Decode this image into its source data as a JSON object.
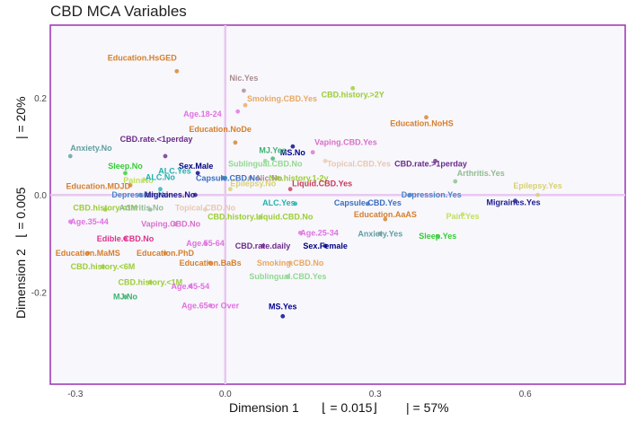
{
  "chart_data": {
    "type": "scatter",
    "title": "CBD MCA Variables",
    "xlabel": {
      "prefix": "Dimension 1",
      "eig": "⌊ = 0.015⌋",
      "pct": "| = 57%"
    },
    "ylabel": {
      "prefix": "Dimension 2",
      "eig": "⌊ = 0.005",
      "pct": "| = 20%"
    },
    "xlim": [
      -0.35,
      0.8
    ],
    "ylim": [
      -0.39,
      0.35
    ],
    "xticks": [
      -0.3,
      0.0,
      0.3,
      0.6
    ],
    "xtick_labels": [
      "-0.3",
      "0.0",
      "0.3",
      "0.6"
    ],
    "yticks": [
      0.2,
      0.0,
      -0.2
    ],
    "ytick_labels": [
      "0.2",
      "0.0",
      "-0.2"
    ],
    "colors": {
      "panel_border": "#9b30b4",
      "panel_bg": "#f8f7fc",
      "zero_line": "#e8c8f0",
      "education": "#d47f2c",
      "cbd_history": "#9acd32",
      "anxiety": "#5f9ea0",
      "sleep": "#32cd32",
      "pain": "#c0e05a",
      "alc": "#20b2aa",
      "mj": "#3cb371",
      "depression": "#4a86c8",
      "migraines": "#1a1a8c",
      "ms": "#00008b",
      "rate": "#6a2a8a",
      "sex": "#000080",
      "capsule": "#3a6ec0",
      "edible": "#e0308a",
      "liquid": "#c8385a",
      "topical": "#e8c8b0",
      "vaping": "#d870c8",
      "smoking": "#e8a860",
      "age": "#e070e0",
      "sublingual": "#90d890",
      "nic": "#a88c8c",
      "epilepsy": "#d8d070",
      "arthritis": "#8fbc8f"
    },
    "points": [
      {
        "label": "Education.HsGED",
        "x": -0.097,
        "y": 0.255,
        "color": "#d47f2c",
        "anchor": "end",
        "dx": 0,
        "dy": -12
      },
      {
        "label": "Nic.Yes",
        "x": 0.037,
        "y": 0.215,
        "color": "#a88c8c",
        "anchor": "middle",
        "dx": 0,
        "dy": -11
      },
      {
        "label": "CBD.history.>2Y",
        "x": 0.255,
        "y": 0.22,
        "color": "#9acd32",
        "anchor": "middle",
        "dx": 0,
        "dy": 10
      },
      {
        "label": "Smoking.CBD.Yes",
        "x": 0.04,
        "y": 0.185,
        "color": "#e8a860",
        "anchor": "start",
        "dx": 2,
        "dy": -4
      },
      {
        "label": "Age.18-24",
        "x": 0.025,
        "y": 0.172,
        "color": "#e070e0",
        "anchor": "end",
        "dx": -18,
        "dy": 6
      },
      {
        "label": "Education.NoHS",
        "x": 0.402,
        "y": 0.16,
        "color": "#d47f2c",
        "anchor": "middle",
        "dx": -5,
        "dy": 10
      },
      {
        "label": "Education.NoDe",
        "x": 0.02,
        "y": 0.108,
        "color": "#d47f2c",
        "anchor": "end",
        "dx": 18,
        "dy": -12
      },
      {
        "label": "MS.No",
        "x": 0.135,
        "y": 0.1,
        "color": "#00008b",
        "anchor": "middle",
        "dx": 0,
        "dy": 10
      },
      {
        "label": "Vaping.CBD.Yes",
        "x": 0.175,
        "y": 0.088,
        "color": "#d870c8",
        "anchor": "start",
        "dx": 2,
        "dy": -8
      },
      {
        "label": "CBD.rate.<1perday",
        "x": -0.12,
        "y": 0.08,
        "color": "#6a2a8a",
        "anchor": "middle",
        "dx": -10,
        "dy": -16
      },
      {
        "label": "Anxiety.No",
        "x": -0.31,
        "y": 0.08,
        "color": "#5f9ea0",
        "anchor": "start",
        "dx": 0,
        "dy": -6
      },
      {
        "label": "MJ.Yes",
        "x": 0.095,
        "y": 0.075,
        "color": "#3cb371",
        "anchor": "middle",
        "dx": 0,
        "dy": -6
      },
      {
        "label": "Sublingual.CBD.No",
        "x": 0.08,
        "y": 0.07,
        "color": "#90d890",
        "anchor": "middle",
        "dx": 0,
        "dy": 6
      },
      {
        "label": "Topical.CBD.Yes",
        "x": 0.2,
        "y": 0.07,
        "color": "#e8c8b0",
        "anchor": "start",
        "dx": 2,
        "dy": 6
      },
      {
        "label": "CBD.rate.>1perday",
        "x": 0.42,
        "y": 0.07,
        "color": "#6a2a8a",
        "anchor": "middle",
        "dx": -5,
        "dy": 6
      },
      {
        "label": "Sex.Male",
        "x": -0.055,
        "y": 0.045,
        "color": "#000080",
        "anchor": "middle",
        "dx": -2,
        "dy": -5
      },
      {
        "label": "Sleep.No",
        "x": -0.2,
        "y": 0.045,
        "color": "#32cd32",
        "anchor": "middle",
        "dx": 0,
        "dy": -5
      },
      {
        "label": "ALC.Yes",
        "x": 0.0,
        "y": 0.035,
        "color": "#20b2aa",
        "anchor": "end",
        "dx": -38,
        "dy": -5
      },
      {
        "label": "Arthritis.Yes",
        "x": 0.46,
        "y": 0.028,
        "color": "#8fbc8f",
        "anchor": "start",
        "dx": 2,
        "dy": -6
      },
      {
        "label": "Capsule.CBD.No",
        "x": -0.005,
        "y": 0.035,
        "color": "#3a6ec0",
        "anchor": "start",
        "dx": -30,
        "dy": 3
      },
      {
        "label": "Nic.No",
        "x": 0.05,
        "y": 0.035,
        "color": "#a88c8c",
        "anchor": "start",
        "dx": 7,
        "dy": 3
      },
      {
        "label": "Nic.history.1-2y",
        "x": 0.105,
        "y": 0.035,
        "color": "#9acd32",
        "anchor": "start",
        "dx": -10,
        "dy": 3
      },
      {
        "label": "Pain.No",
        "x": -0.165,
        "y": 0.03,
        "color": "#c0e05a",
        "anchor": "middle",
        "dx": -5,
        "dy": 3
      },
      {
        "label": "Education.MDJD",
        "x": -0.19,
        "y": 0.02,
        "color": "#d47f2c",
        "anchor": "end",
        "dx": 0,
        "dy": 4
      },
      {
        "label": "ALC.No",
        "x": -0.13,
        "y": 0.012,
        "color": "#20b2aa",
        "anchor": "middle",
        "dx": 0,
        "dy": -10
      },
      {
        "label": "Epilepsy.No",
        "x": 0.01,
        "y": 0.012,
        "color": "#d8d070",
        "anchor": "start",
        "dx": 0,
        "dy": -3
      },
      {
        "label": "Liquid.CBD.Yes",
        "x": 0.13,
        "y": 0.012,
        "color": "#c8385a",
        "anchor": "start",
        "dx": 2,
        "dy": -3
      },
      {
        "label": "Epilepsy.Yes",
        "x": 0.625,
        "y": 0.0,
        "color": "#d8d070",
        "anchor": "middle",
        "dx": 0,
        "dy": -7
      },
      {
        "label": "Depression.No",
        "x": -0.17,
        "y": 0.0,
        "color": "#4a86c8",
        "anchor": "middle",
        "dx": 0,
        "dy": 3
      },
      {
        "label": "Migraines.No",
        "x": -0.06,
        "y": 0.0,
        "color": "#1a1a8c",
        "anchor": "end",
        "dx": 0,
        "dy": 3
      },
      {
        "label": "Depression.Yes",
        "x": 0.37,
        "y": 0.0,
        "color": "#4a86c8",
        "anchor": "start",
        "dx": -10,
        "dy": 3
      },
      {
        "label": "Migraines.Yes",
        "x": 0.58,
        "y": -0.012,
        "color": "#1a1a8c",
        "anchor": "middle",
        "dx": -2,
        "dy": 5
      },
      {
        "label": "CBD.history.<3M",
        "x": -0.24,
        "y": -0.03,
        "color": "#9acd32",
        "anchor": "middle",
        "dx": 0,
        "dy": 1
      },
      {
        "label": "Arthritis.No",
        "x": -0.15,
        "y": -0.03,
        "color": "#8fbc8f",
        "anchor": "middle",
        "dx": -10,
        "dy": 1
      },
      {
        "label": "Topical.CBD.No",
        "x": -0.04,
        "y": -0.03,
        "color": "#e8c8b0",
        "anchor": "middle",
        "dx": 0,
        "dy": 1
      },
      {
        "label": "ALC.Yes",
        "x": 0.14,
        "y": -0.018,
        "color": "#20b2aa",
        "anchor": "end",
        "dx": 0,
        "dy": 2
      },
      {
        "label": "Capsule.CBD.Yes",
        "x": 0.285,
        "y": -0.018,
        "color": "#3a6ec0",
        "anchor": "middle",
        "dx": 0,
        "dy": 2
      },
      {
        "label": "Pain.Yes",
        "x": 0.475,
        "y": -0.04,
        "color": "#c0e05a",
        "anchor": "middle",
        "dx": 0,
        "dy": 5
      },
      {
        "label": "Age.35-44",
        "x": -0.31,
        "y": -0.055,
        "color": "#e070e0",
        "anchor": "start",
        "dx": 0,
        "dy": 3
      },
      {
        "label": "Vaping.CBD.No",
        "x": -0.1,
        "y": -0.06,
        "color": "#d870c8",
        "anchor": "middle",
        "dx": -5,
        "dy": 3
      },
      {
        "label": "CBD.history.Liquid.CBD.No",
        "x": 0.07,
        "y": -0.045,
        "color": "#9acd32",
        "anchor": "middle",
        "dx": 0,
        "dy": 3
      },
      {
        "label": "Education.AaAS",
        "x": 0.32,
        "y": -0.05,
        "color": "#d47f2c",
        "anchor": "middle",
        "dx": 0,
        "dy": -2
      },
      {
        "label": "Age.25-34",
        "x": 0.15,
        "y": -0.078,
        "color": "#e070e0",
        "anchor": "start",
        "dx": 0,
        "dy": 3
      },
      {
        "label": "Anxiety.Yes",
        "x": 0.31,
        "y": -0.08,
        "color": "#5f9ea0",
        "anchor": "middle",
        "dx": 0,
        "dy": 3
      },
      {
        "label": "Sleep.Yes",
        "x": 0.425,
        "y": -0.085,
        "color": "#32cd32",
        "anchor": "middle",
        "dx": 0,
        "dy": 3
      },
      {
        "label": "Edible.CBD.No",
        "x": -0.2,
        "y": -0.09,
        "color": "#e0308a",
        "anchor": "middle",
        "dx": 0,
        "dy": 3
      },
      {
        "label": "Age.55-64",
        "x": -0.04,
        "y": -0.1,
        "color": "#e070e0",
        "anchor": "middle",
        "dx": 0,
        "dy": 3
      },
      {
        "label": "CBD.rate.daily",
        "x": 0.075,
        "y": -0.105,
        "color": "#6a2a8a",
        "anchor": "middle",
        "dx": 0,
        "dy": 3
      },
      {
        "label": "Sex.Female",
        "x": 0.2,
        "y": -0.105,
        "color": "#000080",
        "anchor": "middle",
        "dx": 0,
        "dy": 3
      },
      {
        "label": "Education.MaMS",
        "x": -0.275,
        "y": -0.12,
        "color": "#d47f2c",
        "anchor": "middle",
        "dx": 0,
        "dy": 3
      },
      {
        "label": "Education.PhD",
        "x": -0.12,
        "y": -0.12,
        "color": "#d47f2c",
        "anchor": "middle",
        "dx": 0,
        "dy": 3
      },
      {
        "label": "Education.BaBs",
        "x": -0.03,
        "y": -0.14,
        "color": "#d47f2c",
        "anchor": "middle",
        "dx": 0,
        "dy": 3
      },
      {
        "label": "Smoking.CBD.No",
        "x": 0.13,
        "y": -0.14,
        "color": "#e8a860",
        "anchor": "middle",
        "dx": 0,
        "dy": 3
      },
      {
        "label": "CBD.history.<6M",
        "x": -0.245,
        "y": -0.148,
        "color": "#9acd32",
        "anchor": "middle",
        "dx": 0,
        "dy": 3
      },
      {
        "label": "Sublingual.CBD.Yes",
        "x": 0.125,
        "y": -0.168,
        "color": "#90d890",
        "anchor": "middle",
        "dx": 0,
        "dy": 3
      },
      {
        "label": "CBD.history.<1M",
        "x": -0.15,
        "y": -0.18,
        "color": "#9acd32",
        "anchor": "middle",
        "dx": 0,
        "dy": 3
      },
      {
        "label": "Age.45-54",
        "x": -0.07,
        "y": -0.188,
        "color": "#e070e0",
        "anchor": "middle",
        "dx": 0,
        "dy": 3
      },
      {
        "label": "MJ.No",
        "x": -0.2,
        "y": -0.21,
        "color": "#3cb371",
        "anchor": "middle",
        "dx": 0,
        "dy": 3
      },
      {
        "label": "Age.65 or Over",
        "x": -0.03,
        "y": -0.228,
        "color": "#e070e0",
        "anchor": "middle",
        "dx": 0,
        "dy": 3
      },
      {
        "label": "MS.Yes",
        "x": 0.115,
        "y": -0.25,
        "color": "#00008b",
        "anchor": "middle",
        "dx": 0,
        "dy": -8
      }
    ]
  }
}
